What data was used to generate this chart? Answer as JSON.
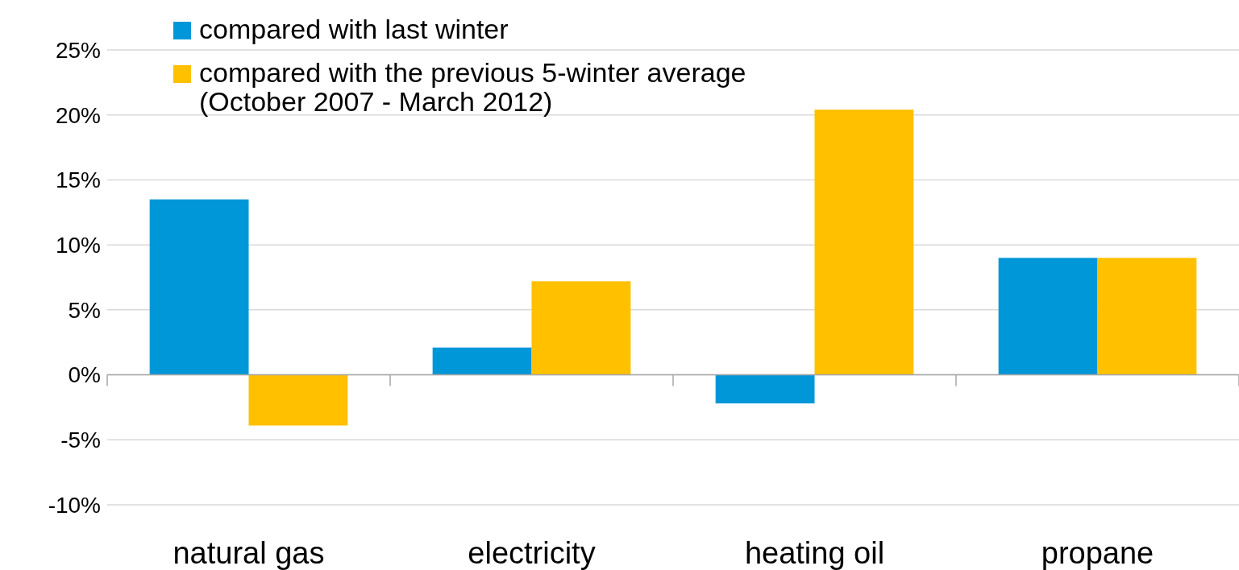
{
  "chart_data": {
    "type": "bar",
    "categories": [
      "natural gas",
      "electricity",
      "heating oil",
      "propane"
    ],
    "series": [
      {
        "name": "compared with last winter",
        "color": "#0097d9",
        "values": [
          13.5,
          2.1,
          -2.2,
          9.0
        ]
      },
      {
        "name": "compared with the previous 5-winter average (October 2007 - March 2012)",
        "color": "#ffc000",
        "values": [
          -3.9,
          7.2,
          20.4,
          9.0
        ]
      }
    ],
    "ylim": [
      -10,
      25
    ],
    "yticks": [
      {
        "value": -10,
        "label": "-10%"
      },
      {
        "value": -5,
        "label": "-5%"
      },
      {
        "value": 0,
        "label": "0%"
      },
      {
        "value": 5,
        "label": "5%"
      },
      {
        "value": 10,
        "label": "10%"
      },
      {
        "value": 15,
        "label": "15%"
      },
      {
        "value": 20,
        "label": "20%"
      },
      {
        "value": 25,
        "label": "25%"
      }
    ],
    "grid": "y",
    "legend": "top left"
  }
}
